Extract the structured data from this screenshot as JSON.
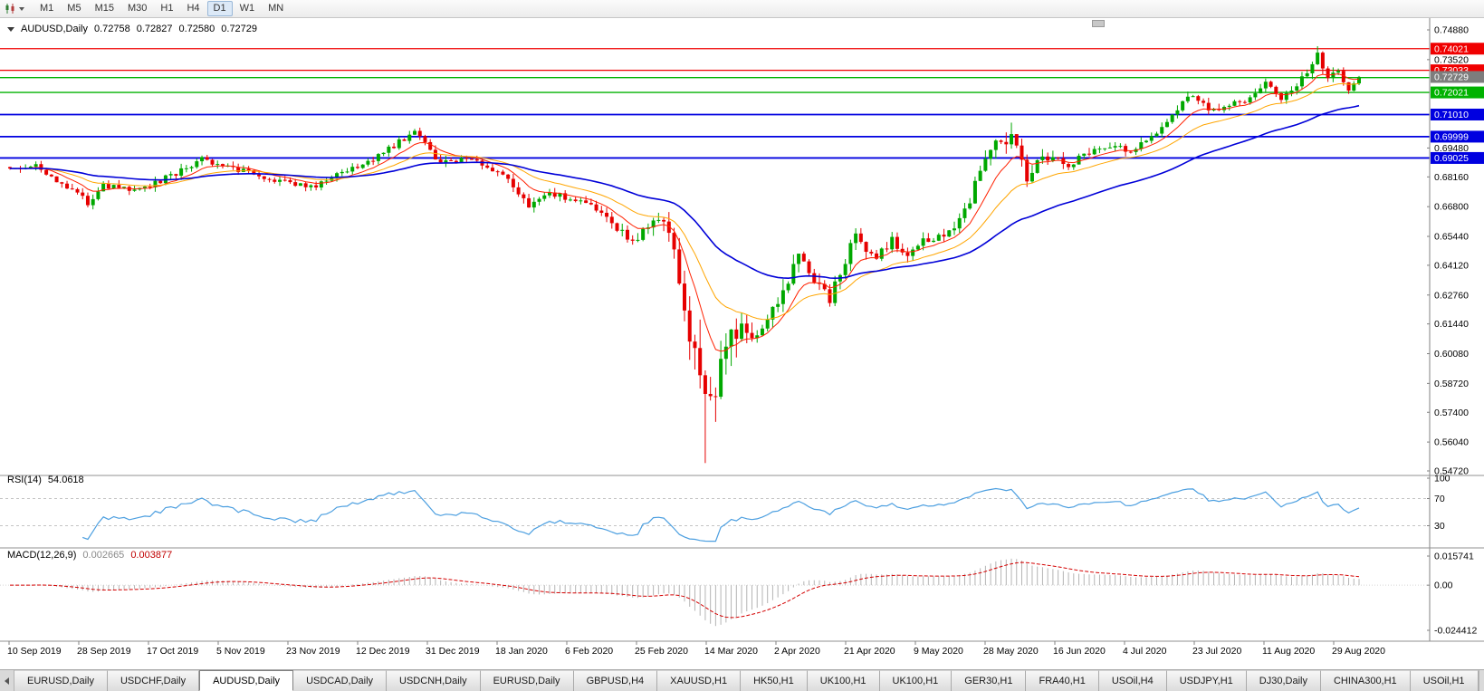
{
  "toolbar": {
    "timeframes": [
      "M1",
      "M5",
      "M15",
      "M30",
      "H1",
      "H4",
      "D1",
      "W1",
      "MN"
    ],
    "active_timeframe": "D1"
  },
  "chart_header": {
    "symbol": "AUDUSD,Daily",
    "open": "0.72758",
    "high": "0.72827",
    "low": "0.72580",
    "close": "0.72729"
  },
  "chart_data": {
    "type": "candlestick",
    "symbol": "AUDUSD",
    "timeframe": "Daily",
    "candle_count": 261,
    "price_axis": {
      "min": 0.5472,
      "max": 0.7488,
      "tick_labels": [
        "0.74880",
        "0.73520",
        "0.69480",
        "0.68160",
        "0.66800",
        "0.65440",
        "0.64120",
        "0.62760",
        "0.61440",
        "0.60080",
        "0.58720",
        "0.57400",
        "0.56040",
        "0.54720"
      ]
    },
    "current_price": {
      "value": 0.72729,
      "label": "0.72729",
      "color": "#7d7d7d"
    },
    "hlines": [
      {
        "value": 0.74021,
        "label": "0.74021",
        "color": "#f00000",
        "width": 1.3
      },
      {
        "value": 0.73033,
        "label": "0.73033",
        "color": "#f00000",
        "width": 1.3
      },
      {
        "value": 0.727,
        "label": "",
        "color": "#00b200",
        "width": 1.4
      },
      {
        "value": 0.72021,
        "label": "0.72021",
        "color": "#00b200",
        "width": 1.4
      },
      {
        "value": 0.7101,
        "label": "0.71010",
        "color": "#0000e0",
        "width": 1.8
      },
      {
        "value": 0.69999,
        "label": "0.69999",
        "color": "#0000e0",
        "width": 1.8
      },
      {
        "value": 0.69025,
        "label": "0.69025",
        "color": "#0000e0",
        "width": 1.8
      }
    ],
    "candle_colors": {
      "bull": "#00a800",
      "bear": "#e60000"
    },
    "moving_averages": [
      {
        "name": "fast",
        "type": "ema",
        "period": 9,
        "color": "#ff2000",
        "width": 1
      },
      {
        "name": "medium",
        "type": "ema",
        "period": 21,
        "color": "#ffa500",
        "width": 1
      },
      {
        "name": "slow",
        "type": "ema",
        "period": 50,
        "color": "#0000d8",
        "width": 1.6
      }
    ],
    "price_path_anchors": [
      [
        0,
        0.6861,
        0.0042
      ],
      [
        5,
        0.6868,
        0.004
      ],
      [
        10,
        0.679,
        0.0042
      ],
      [
        15,
        0.67,
        0.0045
      ],
      [
        18,
        0.6772,
        0.0042
      ],
      [
        25,
        0.6756,
        0.004
      ],
      [
        32,
        0.6832,
        0.0038
      ],
      [
        37,
        0.6895,
        0.0038
      ],
      [
        42,
        0.6862,
        0.0036
      ],
      [
        50,
        0.681,
        0.0034
      ],
      [
        58,
        0.6766,
        0.0034
      ],
      [
        64,
        0.6842,
        0.0034
      ],
      [
        70,
        0.6892,
        0.0034
      ],
      [
        78,
        0.7026,
        0.0036
      ],
      [
        83,
        0.6872,
        0.004
      ],
      [
        88,
        0.6906,
        0.0038
      ],
      [
        95,
        0.6826,
        0.004
      ],
      [
        100,
        0.6692,
        0.0046
      ],
      [
        104,
        0.6732,
        0.0044
      ],
      [
        110,
        0.6716,
        0.0042
      ],
      [
        115,
        0.6626,
        0.0046
      ],
      [
        120,
        0.6518,
        0.006
      ],
      [
        125,
        0.664,
        0.0075
      ],
      [
        127,
        0.6582,
        0.009
      ],
      [
        130,
        0.6186,
        0.015
      ],
      [
        132,
        0.5992,
        0.021
      ],
      [
        134,
        0.5742,
        0.029
      ],
      [
        136,
        0.5832,
        0.023
      ],
      [
        139,
        0.6066,
        0.018
      ],
      [
        142,
        0.6134,
        0.013
      ],
      [
        144,
        0.6062,
        0.011
      ],
      [
        148,
        0.6236,
        0.0095
      ],
      [
        152,
        0.644,
        0.0085
      ],
      [
        155,
        0.6356,
        0.008
      ],
      [
        158,
        0.6262,
        0.0075
      ],
      [
        163,
        0.655,
        0.007
      ],
      [
        167,
        0.6436,
        0.0065
      ],
      [
        170,
        0.653,
        0.006
      ],
      [
        173,
        0.6446,
        0.0058
      ],
      [
        176,
        0.653,
        0.0056
      ],
      [
        180,
        0.6536,
        0.0054
      ],
      [
        184,
        0.665,
        0.0062
      ],
      [
        188,
        0.692,
        0.0075
      ],
      [
        190,
        0.697,
        0.008
      ],
      [
        193,
        0.7,
        0.0085
      ],
      [
        196,
        0.6804,
        0.0075
      ],
      [
        198,
        0.688,
        0.0065
      ],
      [
        201,
        0.692,
        0.0058
      ],
      [
        204,
        0.6872,
        0.0054
      ],
      [
        208,
        0.692,
        0.005
      ],
      [
        212,
        0.695,
        0.0046
      ],
      [
        216,
        0.694,
        0.0044
      ],
      [
        220,
        0.699,
        0.0044
      ],
      [
        224,
        0.7106,
        0.0046
      ],
      [
        228,
        0.719,
        0.0048
      ],
      [
        231,
        0.712,
        0.0046
      ],
      [
        235,
        0.715,
        0.0042
      ],
      [
        239,
        0.717,
        0.004
      ],
      [
        242,
        0.724,
        0.0042
      ],
      [
        245,
        0.716,
        0.0042
      ],
      [
        249,
        0.727,
        0.0042
      ],
      [
        252,
        0.7375,
        0.0062
      ],
      [
        254,
        0.727,
        0.005
      ],
      [
        256,
        0.7286,
        0.0042
      ],
      [
        258,
        0.7216,
        0.004
      ],
      [
        260,
        0.7273,
        0.0036
      ]
    ],
    "spikes": [
      {
        "index": 134,
        "low": 0.5508
      },
      {
        "index": 193,
        "high": 0.7064
      },
      {
        "index": 252,
        "high": 0.74134
      }
    ],
    "rsi": {
      "label": "RSI(14)",
      "value": "54.0618",
      "period": 14,
      "levels": [
        100,
        70,
        30
      ],
      "level_labels": [
        "100",
        "70",
        "30"
      ],
      "color": "#4c9fe0"
    },
    "macd": {
      "label": "MACD(12,26,9)",
      "main_value": "0.002665",
      "signal_value": "0.003877",
      "fast": 12,
      "slow": 26,
      "signal": 9,
      "axis_labels": [
        "0.015741",
        "0.00",
        "-0.024412"
      ],
      "axis_values": [
        0.015741,
        0,
        -0.024412
      ],
      "hist_color": "#b4b4b4",
      "signal_color": "#d40000"
    },
    "time_labels": [
      "10 Sep 2019",
      "28 Sep 2019",
      "17 Oct 2019",
      "5 Nov 2019",
      "23 Nov 2019",
      "12 Dec 2019",
      "31 Dec 2019",
      "18 Jan 2020",
      "6 Feb 2020",
      "25 Feb 2020",
      "14 Mar 2020",
      "2 Apr 2020",
      "21 Apr 2020",
      "9 May 2020",
      "28 May 2020",
      "16 Jun 2020",
      "4 Jul 2020",
      "23 Jul 2020",
      "11 Aug 2020",
      "29 Aug 2020"
    ]
  },
  "tabs": {
    "active_index": 2,
    "items": [
      "EURUSD,Daily",
      "USDCHF,Daily",
      "AUDUSD,Daily",
      "USDCAD,Daily",
      "USDCNH,Daily",
      "EURUSD,Daily",
      "GBPUSD,H4",
      "XAUUSD,H1",
      "HK50,H1",
      "UK100,H1",
      "UK100,H1",
      "GER30,H1",
      "FRA40,H1",
      "USOil,H4",
      "USDJPY,H1",
      "DJ30,Daily",
      "CHINA300,H1",
      "USOil,H1"
    ]
  }
}
